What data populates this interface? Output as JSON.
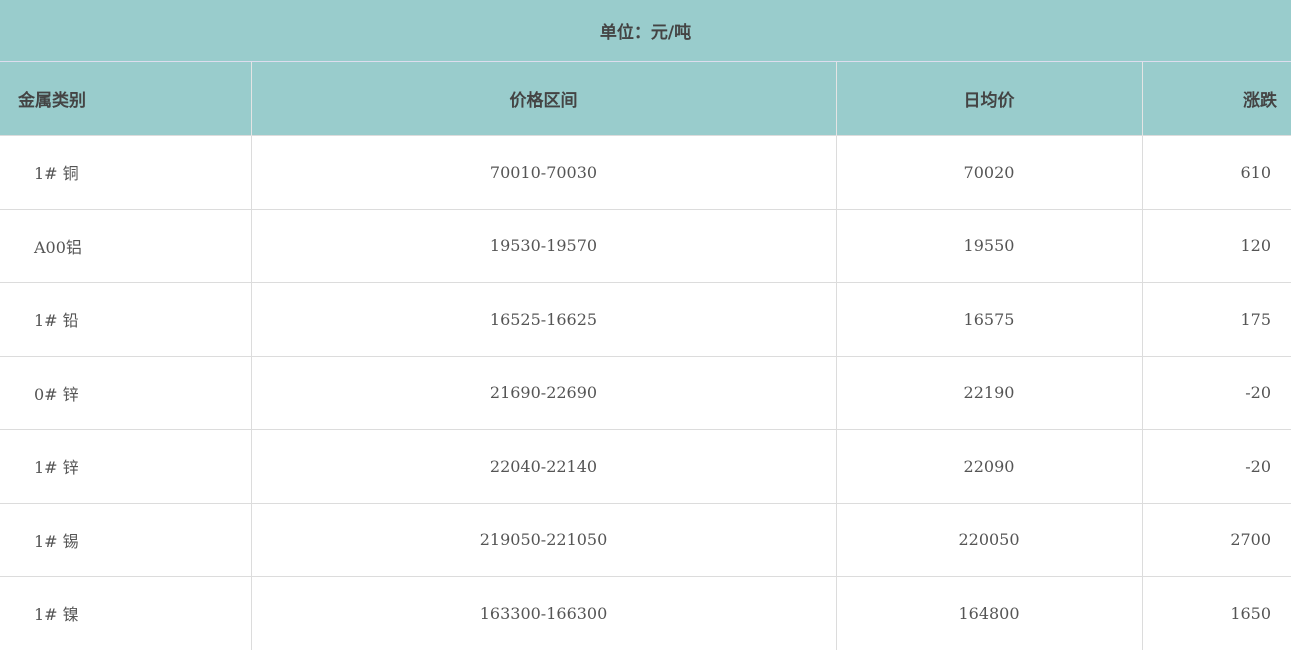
{
  "unit_label": "单位：元/吨",
  "columns": [
    "金属类别",
    "价格区间",
    "日均价",
    "涨跌"
  ],
  "rows": [
    {
      "metal": "1# 铜",
      "range": "70010-70030",
      "avg": "70020",
      "change": "610"
    },
    {
      "metal": "A00铝",
      "range": "19530-19570",
      "avg": "19550",
      "change": "120"
    },
    {
      "metal": "1# 铅",
      "range": "16525-16625",
      "avg": "16575",
      "change": "175"
    },
    {
      "metal": "0# 锌",
      "range": "21690-22690",
      "avg": "22190",
      "change": "-20"
    },
    {
      "metal": "1# 锌",
      "range": "22040-22140",
      "avg": "22090",
      "change": "-20"
    },
    {
      "metal": "1# 锡",
      "range": "219050-221050",
      "avg": "220050",
      "change": "2700"
    },
    {
      "metal": "1# 镍",
      "range": "163300-166300",
      "avg": "164800",
      "change": "1650"
    }
  ],
  "colors": {
    "header_bg": "#99cccc",
    "text": "#555555"
  }
}
